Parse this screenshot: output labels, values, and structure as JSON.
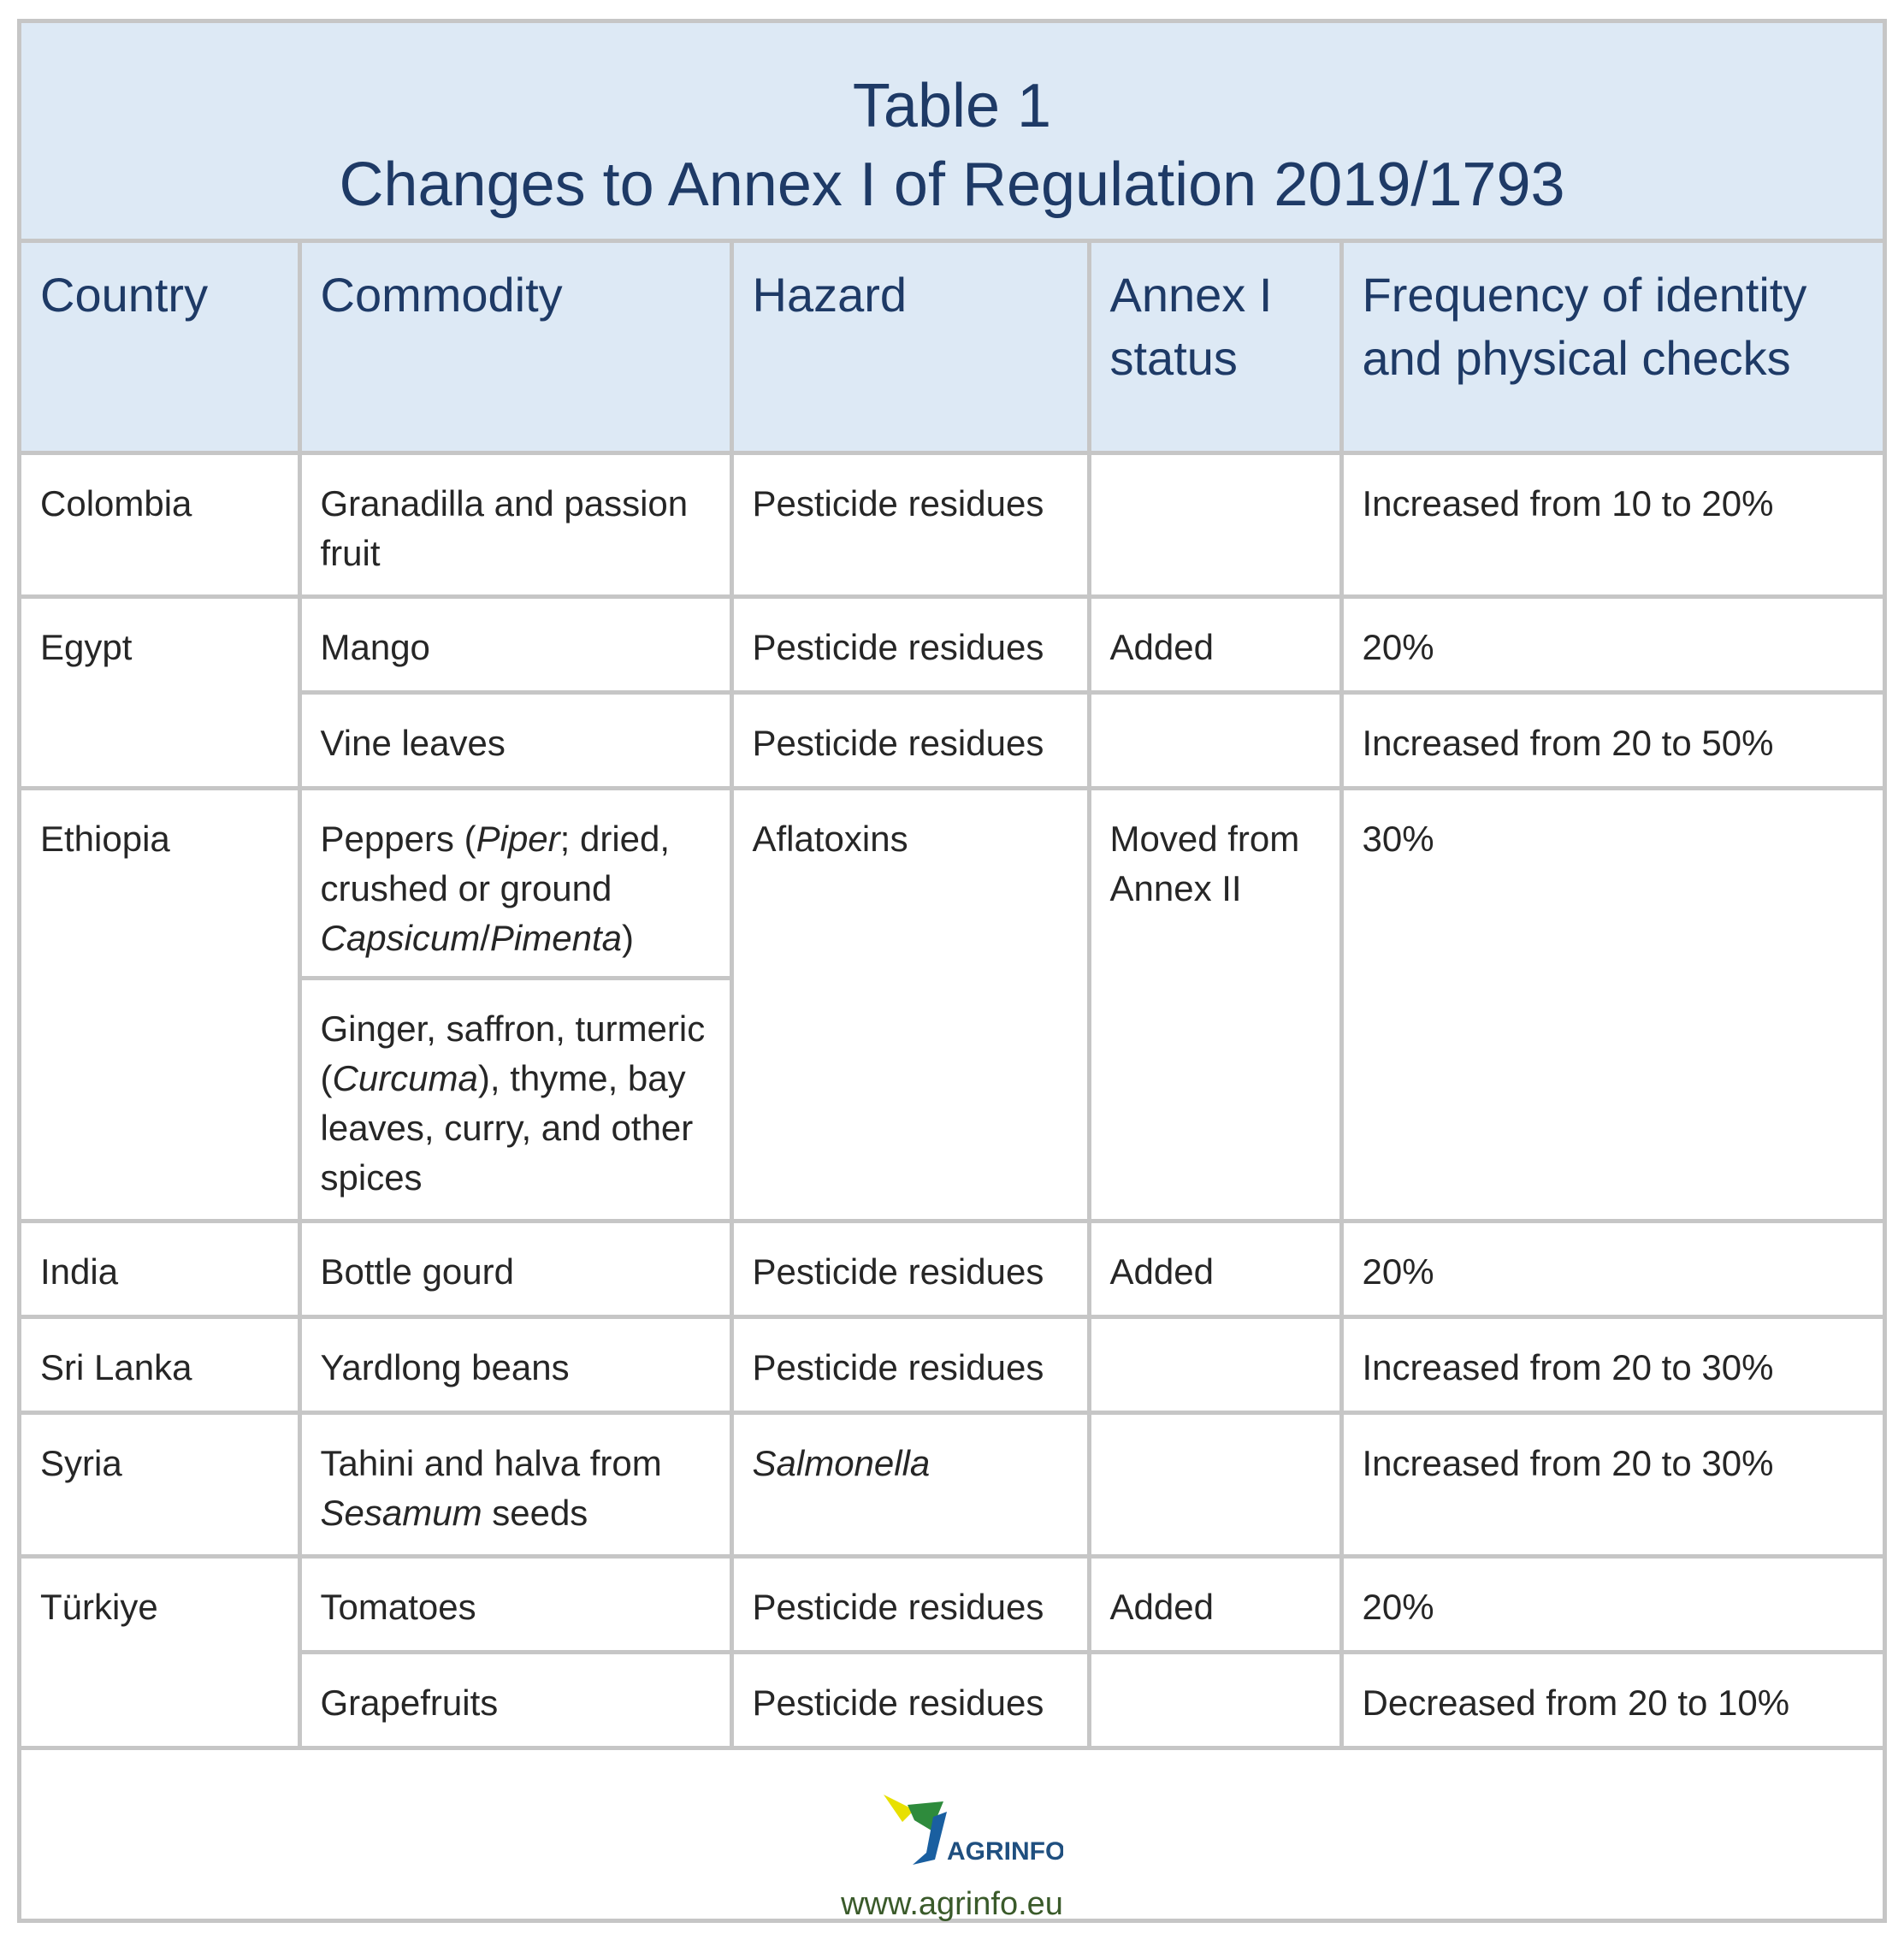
{
  "title": {
    "line1": "Table 1",
    "line2": "Changes to Annex I of Regulation 2019/1793"
  },
  "headers": {
    "country": "Country",
    "commodity": "Commodity",
    "hazard": "Hazard",
    "annex_status": "Annex I status",
    "frequency": "Frequency of identity and physical checks"
  },
  "rows": {
    "colombia": {
      "country": "Colombia",
      "commodity": "Granadilla and passion fruit",
      "hazard": "Pesticide residues",
      "status": "",
      "frequency": "Increased from 10 to 20%"
    },
    "egypt": {
      "country": "Egypt",
      "items": [
        {
          "commodity": "Mango",
          "hazard": "Pesticide residues",
          "status": "Added",
          "frequency": "20%"
        },
        {
          "commodity": "Vine leaves",
          "hazard": "Pesticide residues",
          "status": "",
          "frequency": "Increased from 20 to 50%"
        }
      ]
    },
    "ethiopia": {
      "country": "Ethiopia",
      "commodity1": {
        "a": "Peppers (",
        "b": "Piper",
        "c": "; dried, crushed or ground ",
        "d": "Capsicum",
        "e": "/",
        "f": "Pimenta",
        "g": ")"
      },
      "commodity2": {
        "a": "Ginger, saffron, turmeric (",
        "b": "Curcuma",
        "c": "), thyme, bay leaves, curry, and other spices"
      },
      "hazard": "Aflatoxins",
      "status": "Moved from Annex II",
      "frequency": "30%"
    },
    "india": {
      "country": "India",
      "commodity": "Bottle gourd",
      "hazard": "Pesticide residues",
      "status": "Added",
      "frequency": "20%"
    },
    "sri_lanka": {
      "country": "Sri Lanka",
      "commodity": "Yardlong beans",
      "hazard": "Pesticide residues",
      "status": "",
      "frequency": "Increased from 20 to 30%"
    },
    "syria": {
      "country": "Syria",
      "commodity_a": "Tahini and halva from ",
      "commodity_b": "Sesamum",
      "commodity_c": " seeds",
      "hazard": "Salmonella",
      "status": "",
      "frequency": "Increased from 20 to 30%"
    },
    "turkiye": {
      "country": "Türkiye",
      "items": [
        {
          "commodity": "Tomatoes",
          "hazard": "Pesticide residues",
          "status": "Added",
          "frequency": "20%"
        },
        {
          "commodity": "Grapefruits",
          "hazard": "Pesticide residues",
          "status": "",
          "frequency": "Decreased from 20 to 10%"
        }
      ]
    }
  },
  "footer": {
    "logo_text": "AGRINFO",
    "website": "www.agrinfo.eu"
  },
  "colors": {
    "header_bg": "#dde9f5",
    "header_text": "#1e3a66",
    "grid": "#c6c6c6",
    "logo_green": "#2e8b3c",
    "logo_yellow": "#e8e000",
    "logo_blue": "#1a5fa0"
  }
}
